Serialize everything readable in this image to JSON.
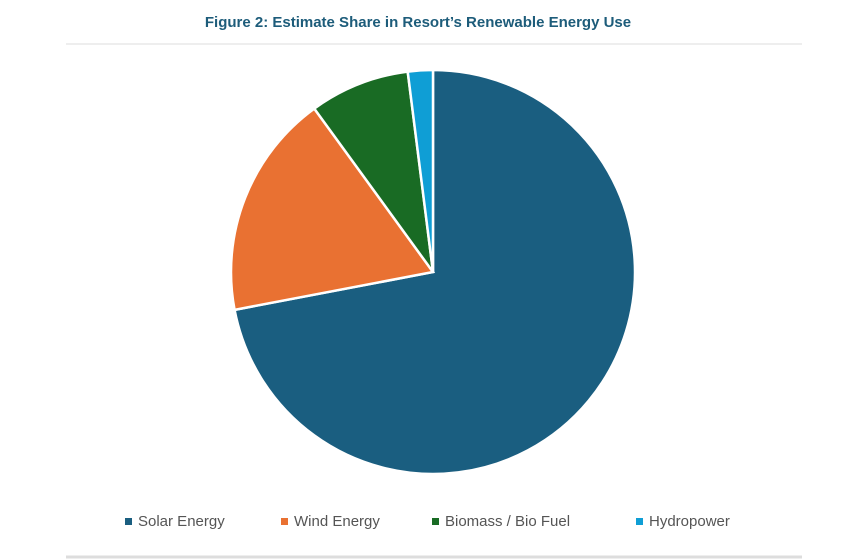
{
  "chart_data": {
    "type": "pie",
    "title": "Figure 2: Estimate Share in Resort’s Renewable Energy Use",
    "categories": [
      "Solar Energy",
      "Wind Energy",
      "Biomass / Bio Fuel",
      "Hydropower"
    ],
    "values": [
      72,
      18,
      8,
      2
    ],
    "colors": [
      "#1a5e80",
      "#e97132",
      "#196b24",
      "#0f9ed5"
    ]
  }
}
